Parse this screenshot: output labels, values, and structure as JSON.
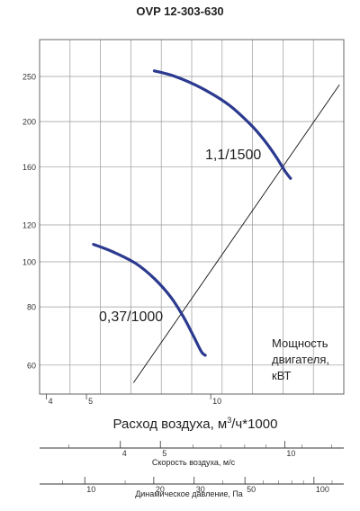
{
  "chart_data": {
    "type": "line",
    "title": "OVP 12-303-630",
    "xlabel_main": "Расход воздуха, м",
    "xlabel_sup": "3",
    "xlabel_tail": "/ч*1000",
    "x_axis": {
      "scale": "log",
      "ticks": [
        4,
        5,
        10
      ],
      "range": [
        3.85,
        21
      ]
    },
    "y_axis": {
      "scale": "log",
      "ticks": [
        60,
        80,
        100,
        120,
        160,
        200,
        250
      ],
      "range": [
        52,
        300
      ]
    },
    "grid": true,
    "series": [
      {
        "name": "1,1/1500",
        "color": "#2b3a8f",
        "points": [
          [
            7.3,
            257
          ],
          [
            8.2,
            250
          ],
          [
            9.5,
            236
          ],
          [
            11.0,
            218
          ],
          [
            12.5,
            197
          ],
          [
            13.5,
            182
          ],
          [
            14.4,
            168
          ],
          [
            15.1,
            157
          ],
          [
            15.6,
            151
          ]
        ]
      },
      {
        "name": "0,37/1000",
        "color": "#2b3a8f",
        "points": [
          [
            5.2,
            109
          ],
          [
            5.8,
            105
          ],
          [
            6.6,
            99
          ],
          [
            7.3,
            92
          ],
          [
            8.0,
            84
          ],
          [
            8.6,
            76
          ],
          [
            9.1,
            69
          ],
          [
            9.5,
            64
          ],
          [
            9.7,
            63
          ]
        ]
      }
    ],
    "power_line": {
      "label_lines": [
        "Мощность",
        "двигателя,",
        "кВТ"
      ],
      "points": [
        [
          6.5,
          55
        ],
        [
          20.5,
          240
        ]
      ]
    },
    "secondary_axes": [
      {
        "label": "Скорость воздуха, м/с",
        "scale": "log",
        "ticks": [
          4,
          5,
          10
        ],
        "minor_at": [
          3,
          6,
          7,
          8,
          9,
          11,
          13,
          15,
          17,
          19
        ],
        "range": [
          2.55,
          13.9
        ]
      },
      {
        "label": "Динамическое давление, Па",
        "scale": "log",
        "ticks": [
          10,
          20,
          30,
          50,
          100
        ],
        "minor_at": [
          8,
          15,
          40,
          60,
          70,
          80,
          90,
          120
        ],
        "range": [
          6.35,
          135
        ]
      }
    ]
  }
}
